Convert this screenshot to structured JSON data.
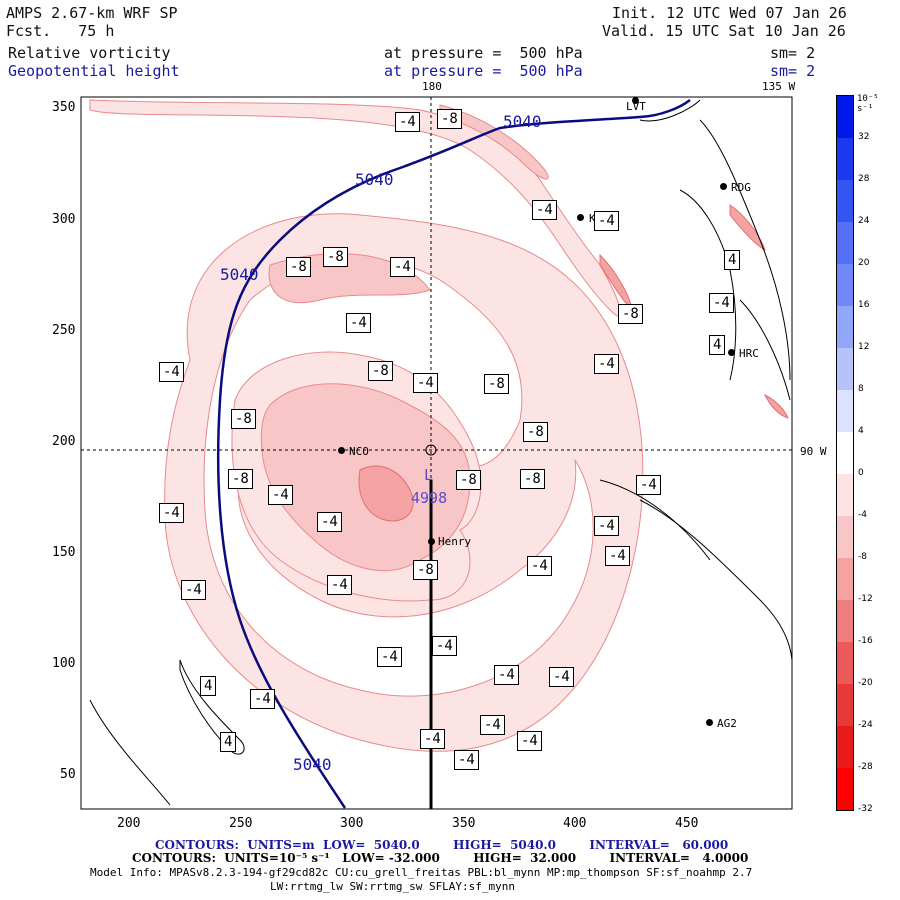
{
  "header": {
    "model": "AMPS 2.67-km WRF SP",
    "forecast": "Fcst.   75 h",
    "init": "Init. 12 UTC Wed 07 Jan 26",
    "valid": "Valid. 15 UTC Sat 10 Jan 26",
    "field1_name": "Relative vorticity",
    "field1_level": "at pressure =  500 hPa",
    "field1_sm": "sm= 2",
    "field2_name": "Geopotential height",
    "field2_level": "at pressure =  500 hPa",
    "field2_sm": "sm= 2"
  },
  "map": {
    "lon_label_top_180": "180",
    "lon_label_top_135w": "135 W",
    "lon_label_right_90w": "90 W",
    "x_ticks": [
      "200",
      "250",
      "300",
      "350",
      "400",
      "450"
    ],
    "y_ticks": [
      "350",
      "300",
      "250",
      "200",
      "150",
      "100",
      "50"
    ],
    "stations": [
      {
        "name": "LVT"
      },
      {
        "name": "RDG"
      },
      {
        "name": "KLN"
      },
      {
        "name": "HRC"
      },
      {
        "name": "NCO"
      },
      {
        "name": "Henry"
      },
      {
        "name": "AG2"
      }
    ],
    "low_center": {
      "label": "L",
      "value": "4998"
    },
    "height_contour_label": "5040",
    "vort_labels": {
      "neg4": "-4",
      "neg8": "-8",
      "pos4": "4"
    }
  },
  "colorbar": {
    "unit": "10⁻⁵ s⁻¹",
    "labels": [
      "32",
      "28",
      "24",
      "20",
      "16",
      "12",
      "8",
      "4",
      "0",
      "-4",
      "-8",
      "-12",
      "-16",
      "-20",
      "-24",
      "-28",
      "-32"
    ],
    "colors": [
      "#0018e8",
      "#1a3af0",
      "#3355f4",
      "#5470f6",
      "#7088f8",
      "#92a6fa",
      "#b5c2fc",
      "#dce2fe",
      "#ffffff",
      "#fce4e4",
      "#f8c6c6",
      "#f4a2a2",
      "#f07e7e",
      "#ec5a5a",
      "#e83838",
      "#e81a1a",
      "#ff0000"
    ]
  },
  "footer": {
    "contours1": "CONTOURS:  UNITS=m  LOW=  5040.0        HIGH=  5040.0        INTERVAL=   60.000",
    "contours2": "CONTOURS:  UNITS=10⁻⁵ s⁻¹   LOW= -32.000        HIGH=  32.000        INTERVAL=   4.0000",
    "model_info": "Model Info: MPASv8.2.3-194-gf29cd82c CU:cu_grell_freitas PBL:bl_mynn MP:mp_thompson SF:sf_noahmp 2.7",
    "model_info2": "LW:rrtmg_lw SW:rrtmg_sw SFLAY:sf_mynn"
  }
}
